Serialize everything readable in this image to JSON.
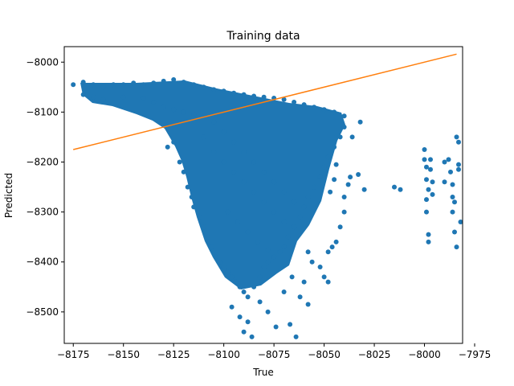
{
  "chart_data": {
    "type": "scatter",
    "title": "Training data",
    "xlabel": "True",
    "ylabel": "Predicted",
    "xlim": [
      -8179.5,
      -7981
    ],
    "ylim": [
      -8563,
      -7969
    ],
    "xticks": [
      -8175,
      -8150,
      -8125,
      -8100,
      -8075,
      -8050,
      -8025,
      -8000,
      -7975
    ],
    "xtick_labels": [
      "−8175",
      "−8150",
      "−8125",
      "−8100",
      "−8075",
      "−8050",
      "−8025",
      "−8000",
      "−7975"
    ],
    "yticks": [
      -8500,
      -8400,
      -8300,
      -8200,
      -8100,
      -8000
    ],
    "ytick_labels": [
      "−8500",
      "−8400",
      "−8300",
      "−8200",
      "−8100",
      "−8000"
    ],
    "grid": false,
    "series": [
      {
        "kind": "scatter",
        "color": "#1f77b4",
        "points": [
          [
            -8175,
            -8045
          ],
          [
            -8170,
            -8040
          ],
          [
            -8165,
            -8045
          ],
          [
            -8160,
            -8050
          ],
          [
            -8155,
            -8045
          ],
          [
            -8150,
            -8045
          ],
          [
            -8145,
            -8042
          ],
          [
            -8140,
            -8045
          ],
          [
            -8135,
            -8042
          ],
          [
            -8130,
            -8038
          ],
          [
            -8125,
            -8035
          ],
          [
            -8120,
            -8040
          ],
          [
            -8115,
            -8045
          ],
          [
            -8110,
            -8050
          ],
          [
            -8105,
            -8055
          ],
          [
            -8100,
            -8058
          ],
          [
            -8095,
            -8062
          ],
          [
            -8090,
            -8065
          ],
          [
            -8085,
            -8068
          ],
          [
            -8080,
            -8070
          ],
          [
            -8075,
            -8072
          ],
          [
            -8070,
            -8075
          ],
          [
            -8065,
            -8080
          ],
          [
            -8060,
            -8085
          ],
          [
            -8055,
            -8090
          ],
          [
            -8050,
            -8095
          ],
          [
            -8045,
            -8100
          ],
          [
            -8040,
            -8108
          ],
          [
            -8170,
            -8065
          ],
          [
            -8165,
            -8070
          ],
          [
            -8160,
            -8075
          ],
          [
            -8150,
            -8070
          ],
          [
            -8140,
            -8072
          ],
          [
            -8135,
            -8080
          ],
          [
            -8130,
            -8090
          ],
          [
            -8125,
            -8095
          ],
          [
            -8120,
            -8100
          ],
          [
            -8115,
            -8105
          ],
          [
            -8128,
            -8170
          ],
          [
            -8125,
            -8160
          ],
          [
            -8122,
            -8200
          ],
          [
            -8120,
            -8220
          ],
          [
            -8118,
            -8250
          ],
          [
            -8116,
            -8270
          ],
          [
            -8115,
            -8290
          ],
          [
            -8112,
            -8310
          ],
          [
            -8110,
            -8330
          ],
          [
            -8108,
            -8350
          ],
          [
            -8106,
            -8370
          ],
          [
            -8104,
            -8390
          ],
          [
            -8102,
            -8400
          ],
          [
            -8100,
            -8410
          ],
          [
            -8098,
            -8420
          ],
          [
            -8096,
            -8430
          ],
          [
            -8094,
            -8440
          ],
          [
            -8092,
            -8450
          ],
          [
            -8090,
            -8460
          ],
          [
            -8088,
            -8470
          ],
          [
            -8085,
            -8450
          ],
          [
            -8082,
            -8430
          ],
          [
            -8080,
            -8410
          ],
          [
            -8078,
            -8400
          ],
          [
            -8075,
            -8390
          ],
          [
            -8072,
            -8380
          ],
          [
            -8070,
            -8370
          ],
          [
            -8068,
            -8350
          ],
          [
            -8065,
            -8330
          ],
          [
            -8062,
            -8310
          ],
          [
            -8060,
            -8290
          ],
          [
            -8058,
            -8270
          ],
          [
            -8055,
            -8250
          ],
          [
            -8052,
            -8230
          ],
          [
            -8050,
            -8210
          ],
          [
            -8048,
            -8190
          ],
          [
            -8045,
            -8170
          ],
          [
            -8042,
            -8150
          ],
          [
            -8040,
            -8130
          ],
          [
            -8110,
            -8150
          ],
          [
            -8105,
            -8180
          ],
          [
            -8100,
            -8200
          ],
          [
            -8095,
            -8220
          ],
          [
            -8090,
            -8240
          ],
          [
            -8085,
            -8260
          ],
          [
            -8080,
            -8280
          ],
          [
            -8075,
            -8300
          ],
          [
            -8070,
            -8320
          ],
          [
            -8105,
            -8120
          ],
          [
            -8100,
            -8140
          ],
          [
            -8095,
            -8160
          ],
          [
            -8090,
            -8180
          ],
          [
            -8085,
            -8200
          ],
          [
            -8080,
            -8220
          ],
          [
            -8075,
            -8240
          ],
          [
            -8070,
            -8260
          ],
          [
            -8065,
            -8280
          ],
          [
            -8098,
            -8300
          ],
          [
            -8093,
            -8320
          ],
          [
            -8088,
            -8340
          ],
          [
            -8083,
            -8360
          ],
          [
            -8078,
            -8375
          ],
          [
            -8096,
            -8490
          ],
          [
            -8092,
            -8510
          ],
          [
            -8090,
            -8540
          ],
          [
            -8088,
            -8520
          ],
          [
            -8086,
            -8550
          ],
          [
            -8082,
            -8480
          ],
          [
            -8078,
            -8500
          ],
          [
            -8074,
            -8530
          ],
          [
            -8064,
            -8550
          ],
          [
            -8067,
            -8525
          ],
          [
            -8070,
            -8460
          ],
          [
            -8062,
            -8470
          ],
          [
            -8060,
            -8440
          ],
          [
            -8056,
            -8400
          ],
          [
            -8052,
            -8410
          ],
          [
            -8048,
            -8380
          ],
          [
            -8046,
            -8370
          ],
          [
            -8044,
            -8360
          ],
          [
            -8042,
            -8330
          ],
          [
            -8040,
            -8300
          ],
          [
            -8058,
            -8485
          ],
          [
            -8058,
            -8380
          ],
          [
            -8066,
            -8430
          ],
          [
            -8050,
            -8430
          ],
          [
            -8048,
            -8440
          ],
          [
            -8038,
            -8245
          ],
          [
            -8037,
            -8230
          ],
          [
            -8033,
            -8225
          ],
          [
            -8030,
            -8255
          ],
          [
            -8040,
            -8270
          ],
          [
            -8045,
            -8235
          ],
          [
            -8047,
            -8260
          ],
          [
            -8044,
            -8205
          ],
          [
            -8036,
            -8150
          ],
          [
            -8032,
            -8120
          ],
          [
            -8015,
            -8250
          ],
          [
            -8012,
            -8255
          ],
          [
            -8000,
            -8175
          ],
          [
            -8000,
            -8195
          ],
          [
            -7999,
            -8210
          ],
          [
            -7999,
            -8235
          ],
          [
            -7998,
            -8255
          ],
          [
            -7999,
            -8275
          ],
          [
            -7999,
            -8300
          ],
          [
            -7998,
            -8345
          ],
          [
            -7998,
            -8360
          ],
          [
            -7997,
            -8195
          ],
          [
            -7997,
            -8215
          ],
          [
            -7996,
            -8240
          ],
          [
            -7996,
            -8265
          ],
          [
            -7988,
            -8195
          ],
          [
            -7987,
            -8220
          ],
          [
            -7986,
            -8245
          ],
          [
            -7986,
            -8270
          ],
          [
            -7985,
            -8280
          ],
          [
            -7984,
            -8150
          ],
          [
            -7983,
            -8160
          ],
          [
            -7983,
            -8205
          ],
          [
            -7983,
            -8215
          ],
          [
            -7982,
            -8320
          ],
          [
            -7986,
            -8300
          ],
          [
            -7985,
            -8340
          ],
          [
            -7984,
            -8370
          ],
          [
            -7990,
            -8240
          ],
          [
            -7990,
            -8200
          ]
        ]
      },
      {
        "kind": "line",
        "color": "#ff7f0e",
        "points": [
          [
            -8175,
            -8175
          ],
          [
            -7984,
            -7984
          ]
        ]
      }
    ]
  }
}
